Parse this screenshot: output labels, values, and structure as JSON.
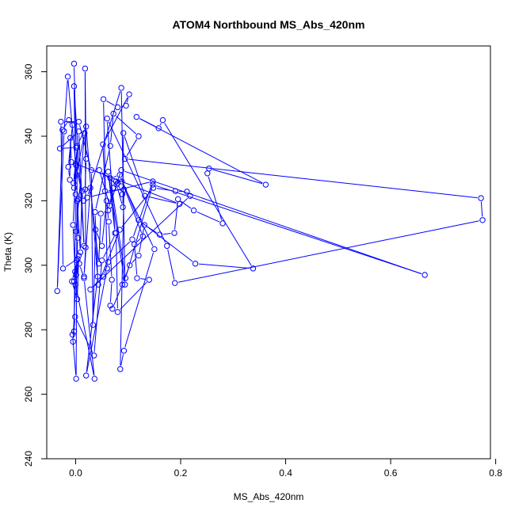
{
  "chart_data": {
    "type": "line",
    "title": "ATOM4 Northbound MS_Abs_420nm",
    "xlabel": "MS_Abs_420nm",
    "ylabel": "Theta (K)",
    "xlim": [
      -0.055,
      0.79
    ],
    "ylim": [
      240,
      368
    ],
    "xticks": [
      0.0,
      0.2,
      0.4,
      0.6,
      0.8
    ],
    "xtick_labels": [
      "0.0",
      "0.2",
      "0.4",
      "0.6",
      "0.8"
    ],
    "yticks": [
      240,
      260,
      280,
      300,
      320,
      340,
      360
    ],
    "ytick_labels": [
      "240",
      "260",
      "280",
      "300",
      "320",
      "340",
      "360"
    ],
    "grid": false,
    "line_color": "#0000ff",
    "marker": "open-circle",
    "series": [
      {
        "points": [
          [
            -0.003,
            362.5
          ],
          [
            0.001,
            336.5
          ],
          [
            -0.03,
            336.2
          ],
          [
            0.006,
            341.5
          ],
          [
            0.016,
            306.0
          ],
          [
            -0.003,
            355.5
          ],
          [
            0.0,
            322.0
          ],
          [
            -0.003,
            279.5
          ],
          [
            -0.006,
            278.5
          ],
          [
            0.001,
            264.8
          ],
          [
            0.003,
            337.0
          ],
          [
            0.02,
            343.0
          ],
          [
            0.043,
            294.0
          ],
          [
            0.084,
            311.0
          ],
          [
            0.148,
            324.0
          ],
          [
            0.19,
            323.0
          ],
          [
            0.212,
            322.8
          ],
          [
            0.218,
            321.5
          ],
          [
            0.028,
            292.5
          ],
          [
            0.053,
            296.5
          ],
          [
            0.062,
            301.0
          ],
          [
            0.108,
            308.0
          ],
          [
            0.147,
            326.0
          ],
          [
            0.022,
            321.0
          ],
          [
            0.087,
            355.0
          ],
          [
            0.094,
            294.0
          ],
          [
            0.062,
            329.0
          ],
          [
            0.075,
            310.0
          ],
          [
            0.06,
            345.5
          ],
          [
            0.174,
            306.0
          ],
          [
            0.189,
            294.5
          ],
          [
            0.775,
            314.0
          ],
          [
            0.772,
            320.8
          ],
          [
            0.094,
            333.0
          ],
          [
            0.12,
            340.0
          ],
          [
            0.072,
            347.0
          ],
          [
            0.066,
            337.0
          ],
          [
            0.037,
            316.5
          ],
          [
            0.042,
            296.5
          ],
          [
            0.02,
            265.8
          ],
          [
            0.06,
            299.0
          ],
          [
            0.053,
            351.5
          ],
          [
            0.08,
            349.0
          ],
          [
            0.096,
            349.5
          ],
          [
            0.102,
            353.0
          ],
          [
            0.052,
            337.5
          ],
          [
            0.056,
            323.0
          ],
          [
            0.092,
            323.5
          ],
          [
            0.085,
            267.8
          ],
          [
            0.092,
            273.5
          ],
          [
            0.15,
            305.0
          ],
          [
            0.088,
            326.0
          ],
          [
            0.128,
            309.0
          ],
          [
            0.112,
            306.5
          ],
          [
            0.117,
            296.0
          ],
          [
            0.14,
            295.5
          ],
          [
            0.08,
            285.5
          ],
          [
            0.077,
            310.0
          ],
          [
            0.05,
            301.5
          ],
          [
            0.035,
            272.0
          ],
          [
            -0.001,
            284.0
          ],
          [
            -0.005,
            276.3
          ],
          [
            0.002,
            301.5
          ],
          [
            -0.003,
            295.0
          ],
          [
            0.007,
            300.5
          ],
          [
            0.016,
            296.0
          ],
          [
            0.036,
            264.8
          ],
          [
            0.0,
            294.0
          ],
          [
            0.006,
            303.0
          ],
          [
            0.003,
            289.5
          ],
          [
            -0.007,
            295.0
          ],
          [
            0.004,
            302.0
          ],
          [
            -0.024,
            299.0
          ],
          [
            -0.028,
            344.5
          ],
          [
            0.006,
            344.5
          ],
          [
            0.03,
            329.5
          ],
          [
            0.033,
            281.5
          ],
          [
            0.038,
            311.0
          ],
          [
            0.05,
            306.0
          ],
          [
            0.059,
            320.0
          ],
          [
            0.063,
            313.5
          ],
          [
            0.069,
            295.5
          ],
          [
            0.066,
            287.5
          ],
          [
            0.07,
            286.5
          ],
          [
            0.089,
            294.0
          ],
          [
            0.103,
            300.0
          ],
          [
            0.12,
            303.0
          ],
          [
            0.131,
            312.5
          ],
          [
            0.16,
            309.5
          ],
          [
            0.188,
            310.0
          ],
          [
            0.195,
            320.5
          ],
          [
            0.225,
            317.0
          ],
          [
            0.28,
            313.0
          ],
          [
            0.251,
            328.5
          ],
          [
            0.254,
            330.0
          ],
          [
            0.362,
            325.0
          ],
          [
            0.116,
            346.0
          ],
          [
            0.158,
            342.5
          ],
          [
            0.166,
            345.0
          ],
          [
            0.338,
            299.0
          ],
          [
            0.228,
            300.5
          ],
          [
            0.12,
            314.0
          ],
          [
            0.084,
            328.0
          ],
          [
            0.066,
            327.0
          ],
          [
            0.095,
            296.0
          ],
          [
            0.147,
            325.0
          ],
          [
            0.665,
            297.0
          ],
          [
            0.087,
            329.5
          ],
          [
            0.065,
            318.5
          ],
          [
            0.045,
            329.5
          ],
          [
            0.078,
            325.0
          ],
          [
            0.09,
            318.0
          ],
          [
            0.091,
            341.0
          ],
          [
            0.132,
            321.5
          ],
          [
            0.198,
            319.0
          ],
          [
            -0.008,
            332.0
          ],
          [
            -0.01,
            339.5
          ],
          [
            -0.011,
            326.5
          ],
          [
            -0.014,
            330.5
          ],
          [
            -0.006,
            343.5
          ],
          [
            -0.013,
            345.0
          ],
          [
            -0.025,
            342.0
          ],
          [
            -0.035,
            292.0
          ],
          [
            -0.022,
            341.5
          ],
          [
            -0.015,
            358.5
          ],
          [
            0.0,
            331.5
          ],
          [
            0.015,
            320.0
          ],
          [
            0.005,
            320.5
          ],
          [
            0.001,
            310.5
          ],
          [
            0.017,
            341.0
          ],
          [
            -0.003,
            324.0
          ],
          [
            0.003,
            336.5
          ],
          [
            -0.004,
            325.5
          ],
          [
            0.002,
            328.0
          ],
          [
            0.001,
            331.0
          ],
          [
            -0.005,
            312.5
          ],
          [
            -0.001,
            298.0
          ],
          [
            0.001,
            297.0
          ],
          [
            0.004,
            308.5
          ],
          [
            0.003,
            320.0
          ],
          [
            0.009,
            304.0
          ],
          [
            0.012,
            323.0
          ],
          [
            0.018,
            323.5
          ],
          [
            0.02,
            333.0
          ],
          [
            0.018,
            361.0
          ],
          [
            0.019,
            305.5
          ],
          [
            0.016,
            296.5
          ],
          [
            0.028,
            324.0
          ],
          [
            0.044,
            300.5
          ],
          [
            0.048,
            316.0
          ],
          [
            0.062,
            317.0
          ],
          [
            0.072,
            324.0
          ],
          [
            0.077,
            326.0
          ],
          [
            0.08,
            325.5
          ],
          [
            0.089,
            322.0
          ]
        ]
      }
    ]
  }
}
